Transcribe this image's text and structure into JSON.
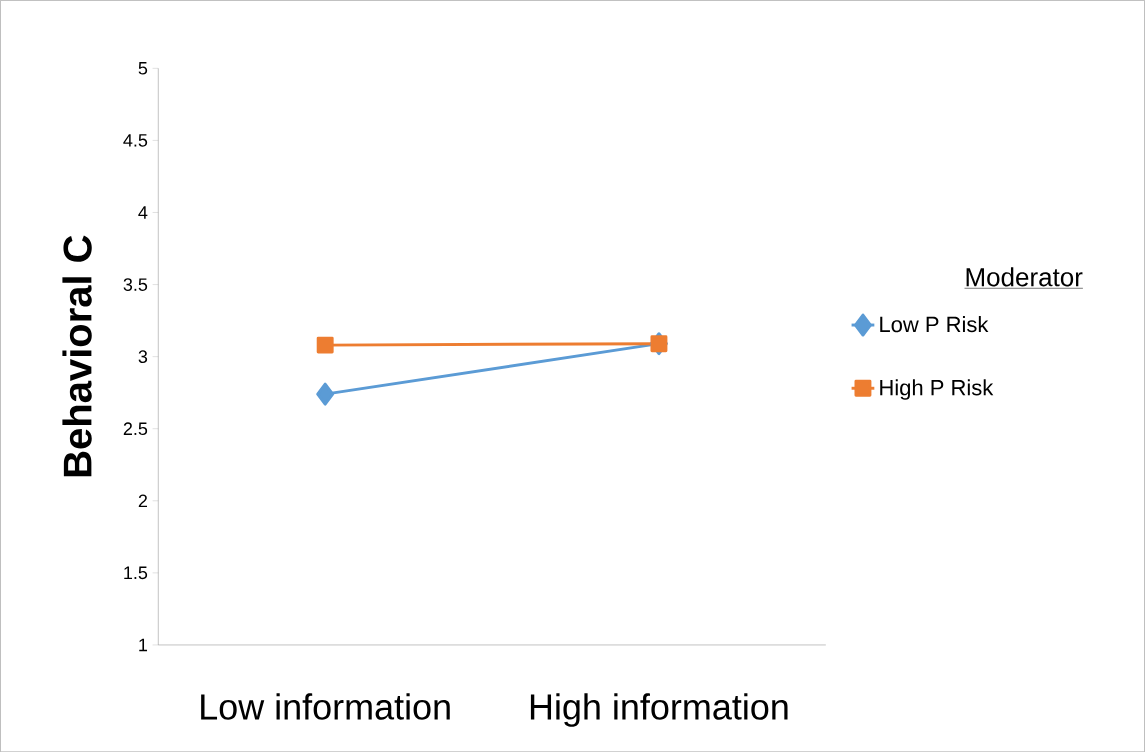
{
  "chart_data": {
    "type": "line",
    "ylabel": "Behavioral C",
    "legend_title": "Moderator",
    "legend": "right",
    "categories": [
      "Low information",
      "High information"
    ],
    "ylim": [
      1,
      5
    ],
    "yticks": [
      1,
      1.5,
      2,
      2.5,
      3,
      3.5,
      4,
      4.5,
      5
    ],
    "grid": false,
    "series": [
      {
        "name": "Low P Risk",
        "color": "#5b9bd5",
        "marker": "diamond",
        "values": [
          2.74,
          3.09
        ]
      },
      {
        "name": "High P Risk",
        "color": "#ed7d31",
        "marker": "square",
        "values": [
          3.08,
          3.09
        ]
      }
    ]
  }
}
